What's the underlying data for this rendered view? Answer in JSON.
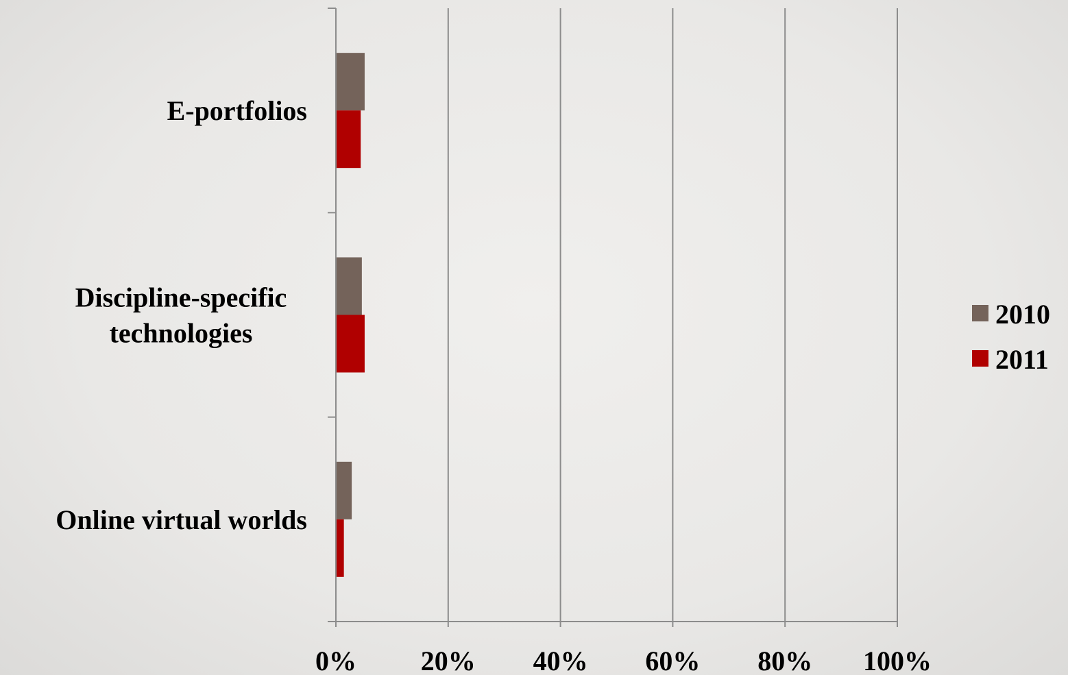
{
  "chart_data": {
    "type": "bar",
    "orientation": "horizontal",
    "categories": [
      [
        "E-portfolios"
      ],
      [
        "Discipline-specific",
        "technologies"
      ],
      [
        "Online virtual worlds"
      ]
    ],
    "series": [
      {
        "name": "2010",
        "values": [
          5,
          4.5,
          2.7
        ],
        "color": "#74635a"
      },
      {
        "name": "2011",
        "values": [
          4.3,
          5,
          1.3
        ],
        "color": "#b00000"
      }
    ],
    "xlim": [
      0,
      100
    ],
    "xticks": [
      "0%",
      "20%",
      "40%",
      "60%",
      "80%",
      "100%"
    ],
    "grid": "vertical",
    "legend": "right",
    "title": "",
    "xlabel": "",
    "ylabel": ""
  }
}
